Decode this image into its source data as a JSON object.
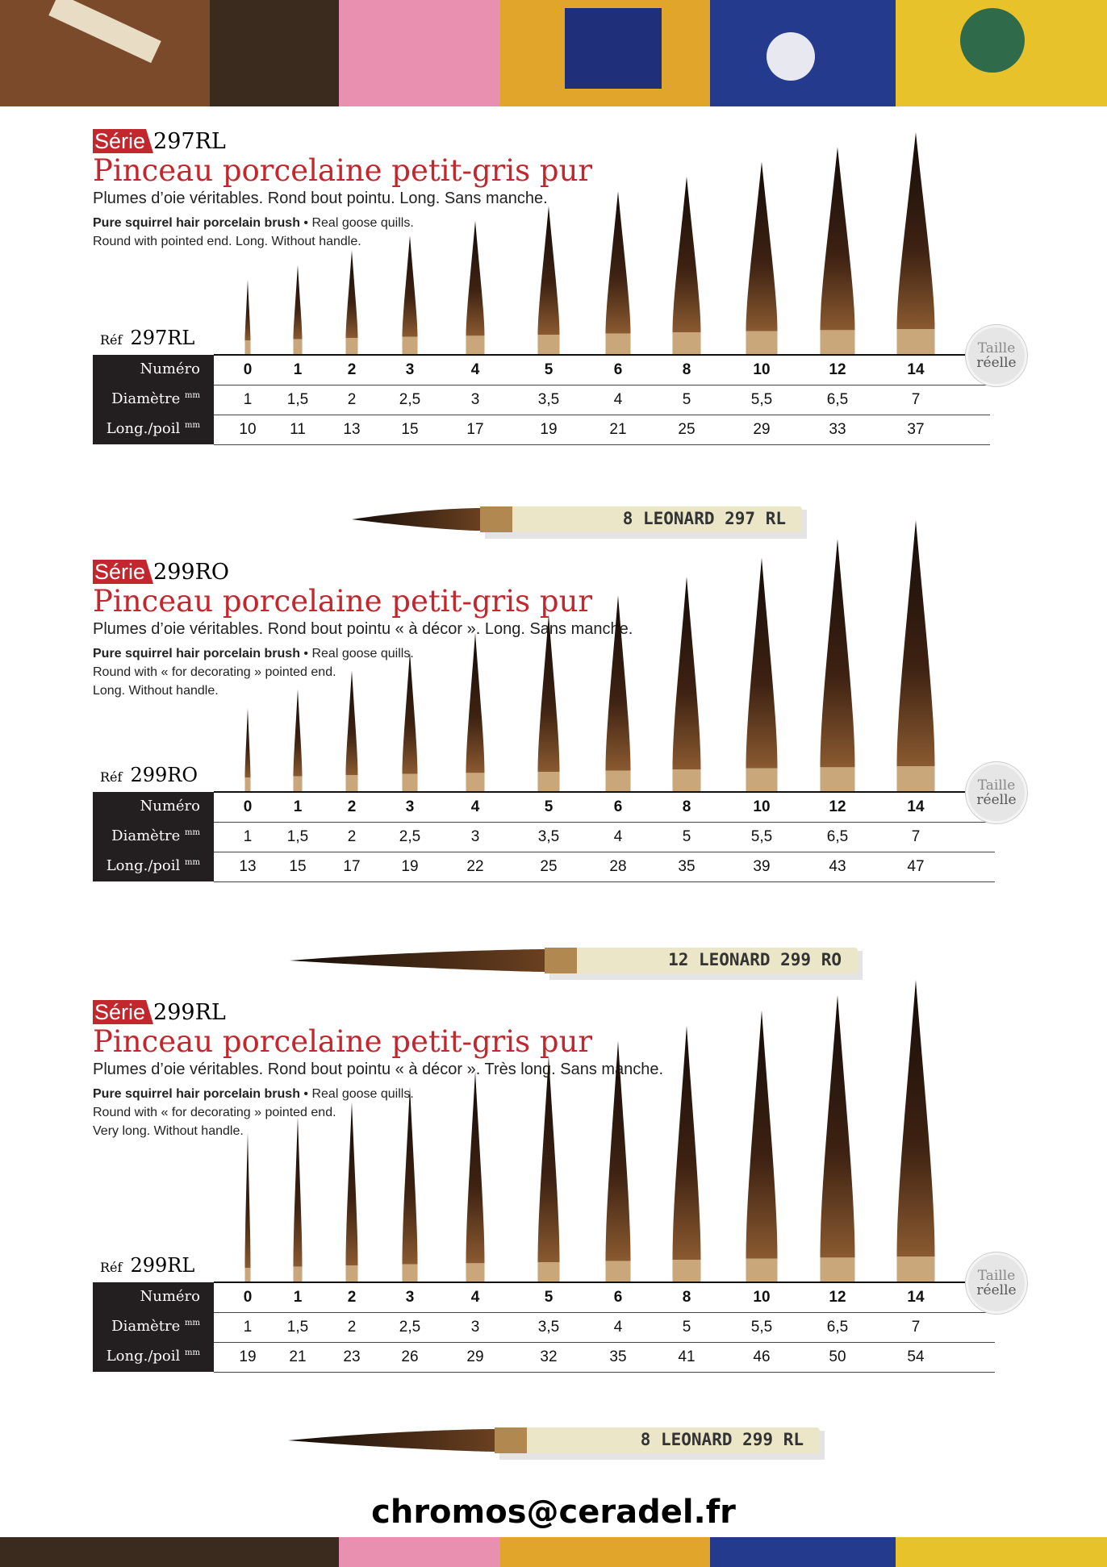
{
  "sections": [
    {
      "serie_label": "Série",
      "serie_code": "297RL",
      "title": "Pinceau porcelaine petit-gris pur",
      "subtitle": "Plumes d’oie véritables. Rond bout pointu. Long. Sans manche.",
      "english": {
        "bold": "Pure squirrel hair porcelain brush",
        "rest": "• Real goose quills.",
        "lines": [
          "Round with pointed end. Long. Without handle."
        ]
      },
      "ref_label": "Réf",
      "ref_code": "297RL",
      "table": {
        "row_labels": [
          {
            "text": "Numéro"
          },
          {
            "text": "Diamètre",
            "unit": "mm"
          },
          {
            "text": "Long./poil",
            "unit": "mm"
          }
        ],
        "rows": [
          [
            "0",
            "1",
            "2",
            "3",
            "4",
            "5",
            "6",
            "8",
            "10",
            "12",
            "14"
          ],
          [
            "1",
            "1,5",
            "2",
            "2,5",
            "3",
            "3,5",
            "4",
            "5",
            "5,5",
            "6,5",
            "7"
          ],
          [
            "10",
            "11",
            "13",
            "15",
            "17",
            "19",
            "21",
            "25",
            "29",
            "33",
            "37"
          ]
        ]
      },
      "badge": [
        "Taille",
        "réelle"
      ],
      "brush_label": "8 LEONARD 297 RL"
    },
    {
      "serie_label": "Série",
      "serie_code": "299RO",
      "title": "Pinceau porcelaine petit-gris pur",
      "subtitle": "Plumes d’oie véritables. Rond bout pointu « à décor ». Long. Sans manche.",
      "english": {
        "bold": "Pure squirrel hair porcelain brush",
        "rest": "• Real goose quills.",
        "lines": [
          "Round with « for decorating » pointed end.",
          "Long. Without handle."
        ]
      },
      "ref_label": "Réf",
      "ref_code": "299RO",
      "table": {
        "row_labels": [
          {
            "text": "Numéro"
          },
          {
            "text": "Diamètre",
            "unit": "mm"
          },
          {
            "text": "Long./poil",
            "unit": "mm"
          }
        ],
        "rows": [
          [
            "0",
            "1",
            "2",
            "3",
            "4",
            "5",
            "6",
            "8",
            "10",
            "12",
            "14"
          ],
          [
            "1",
            "1,5",
            "2",
            "2,5",
            "3",
            "3,5",
            "4",
            "5",
            "5,5",
            "6,5",
            "7"
          ],
          [
            "13",
            "15",
            "17",
            "19",
            "22",
            "25",
            "28",
            "35",
            "39",
            "43",
            "47"
          ]
        ]
      },
      "badge": [
        "Taille",
        "réelle"
      ],
      "brush_label": "12 LEONARD 299 RO"
    },
    {
      "serie_label": "Série",
      "serie_code": "299RL",
      "title": "Pinceau porcelaine petit-gris pur",
      "subtitle": "Plumes d’oie véritables. Rond bout pointu « à décor ». Très long. Sans manche.",
      "english": {
        "bold": "Pure squirrel hair porcelain brush",
        "rest": "• Real goose quills.",
        "lines": [
          "Round with « for decorating » pointed end.",
          "Very long. Without handle."
        ]
      },
      "ref_label": "Réf",
      "ref_code": "299RL",
      "table": {
        "row_labels": [
          {
            "text": "Numéro"
          },
          {
            "text": "Diamètre",
            "unit": "mm"
          },
          {
            "text": "Long./poil",
            "unit": "mm"
          }
        ],
        "rows": [
          [
            "0",
            "1",
            "2",
            "3",
            "4",
            "5",
            "6",
            "8",
            "10",
            "12",
            "14"
          ],
          [
            "1",
            "1,5",
            "2",
            "2,5",
            "3",
            "3,5",
            "4",
            "5",
            "5,5",
            "6,5",
            "7"
          ],
          [
            "19",
            "21",
            "23",
            "26",
            "29",
            "32",
            "35",
            "41",
            "46",
            "50",
            "54"
          ]
        ]
      },
      "badge": [
        "Taille",
        "réelle"
      ],
      "brush_label": "8 LEONARD 299 RL"
    }
  ],
  "footer": {
    "email": "chromos@ceradel.fr"
  }
}
